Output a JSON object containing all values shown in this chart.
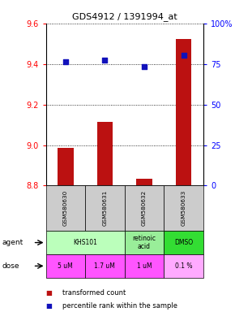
{
  "title": "GDS4912 / 1391994_at",
  "samples": [
    "GSM580630",
    "GSM580631",
    "GSM580632",
    "GSM580633"
  ],
  "transformed_count": [
    8.985,
    9.115,
    8.835,
    9.525
  ],
  "percentile_rank": [
    76.5,
    77.5,
    73.5,
    80.5
  ],
  "ylim_left": [
    8.8,
    9.6
  ],
  "ylim_right": [
    0,
    100
  ],
  "yticks_left": [
    8.8,
    9.0,
    9.2,
    9.4,
    9.6
  ],
  "yticks_right": [
    0,
    25,
    50,
    75,
    100
  ],
  "ytick_labels_right": [
    "0",
    "25",
    "50",
    "75",
    "100%"
  ],
  "bar_color": "#bb1111",
  "dot_color": "#1111bb",
  "dose_labels": [
    "5 uM",
    "1.7 uM",
    "1 uM",
    "0.1 %"
  ],
  "sample_bg": "#cccccc",
  "agent_group1_cols": [
    0,
    1
  ],
  "agent_group1_text": "KHS101",
  "agent_group1_color": "#bbffbb",
  "agent_group2_cols": [
    2
  ],
  "agent_group2_text": "retinoic\nacid",
  "agent_group2_color": "#99ee99",
  "agent_group3_cols": [
    3
  ],
  "agent_group3_text": "DMSO",
  "agent_group3_color": "#33dd33",
  "dose_color_magenta": "#ff55ff",
  "dose_color_light": "#ffaaff",
  "legend_bar_label": "transformed count",
  "legend_dot_label": "percentile rank within the sample"
}
